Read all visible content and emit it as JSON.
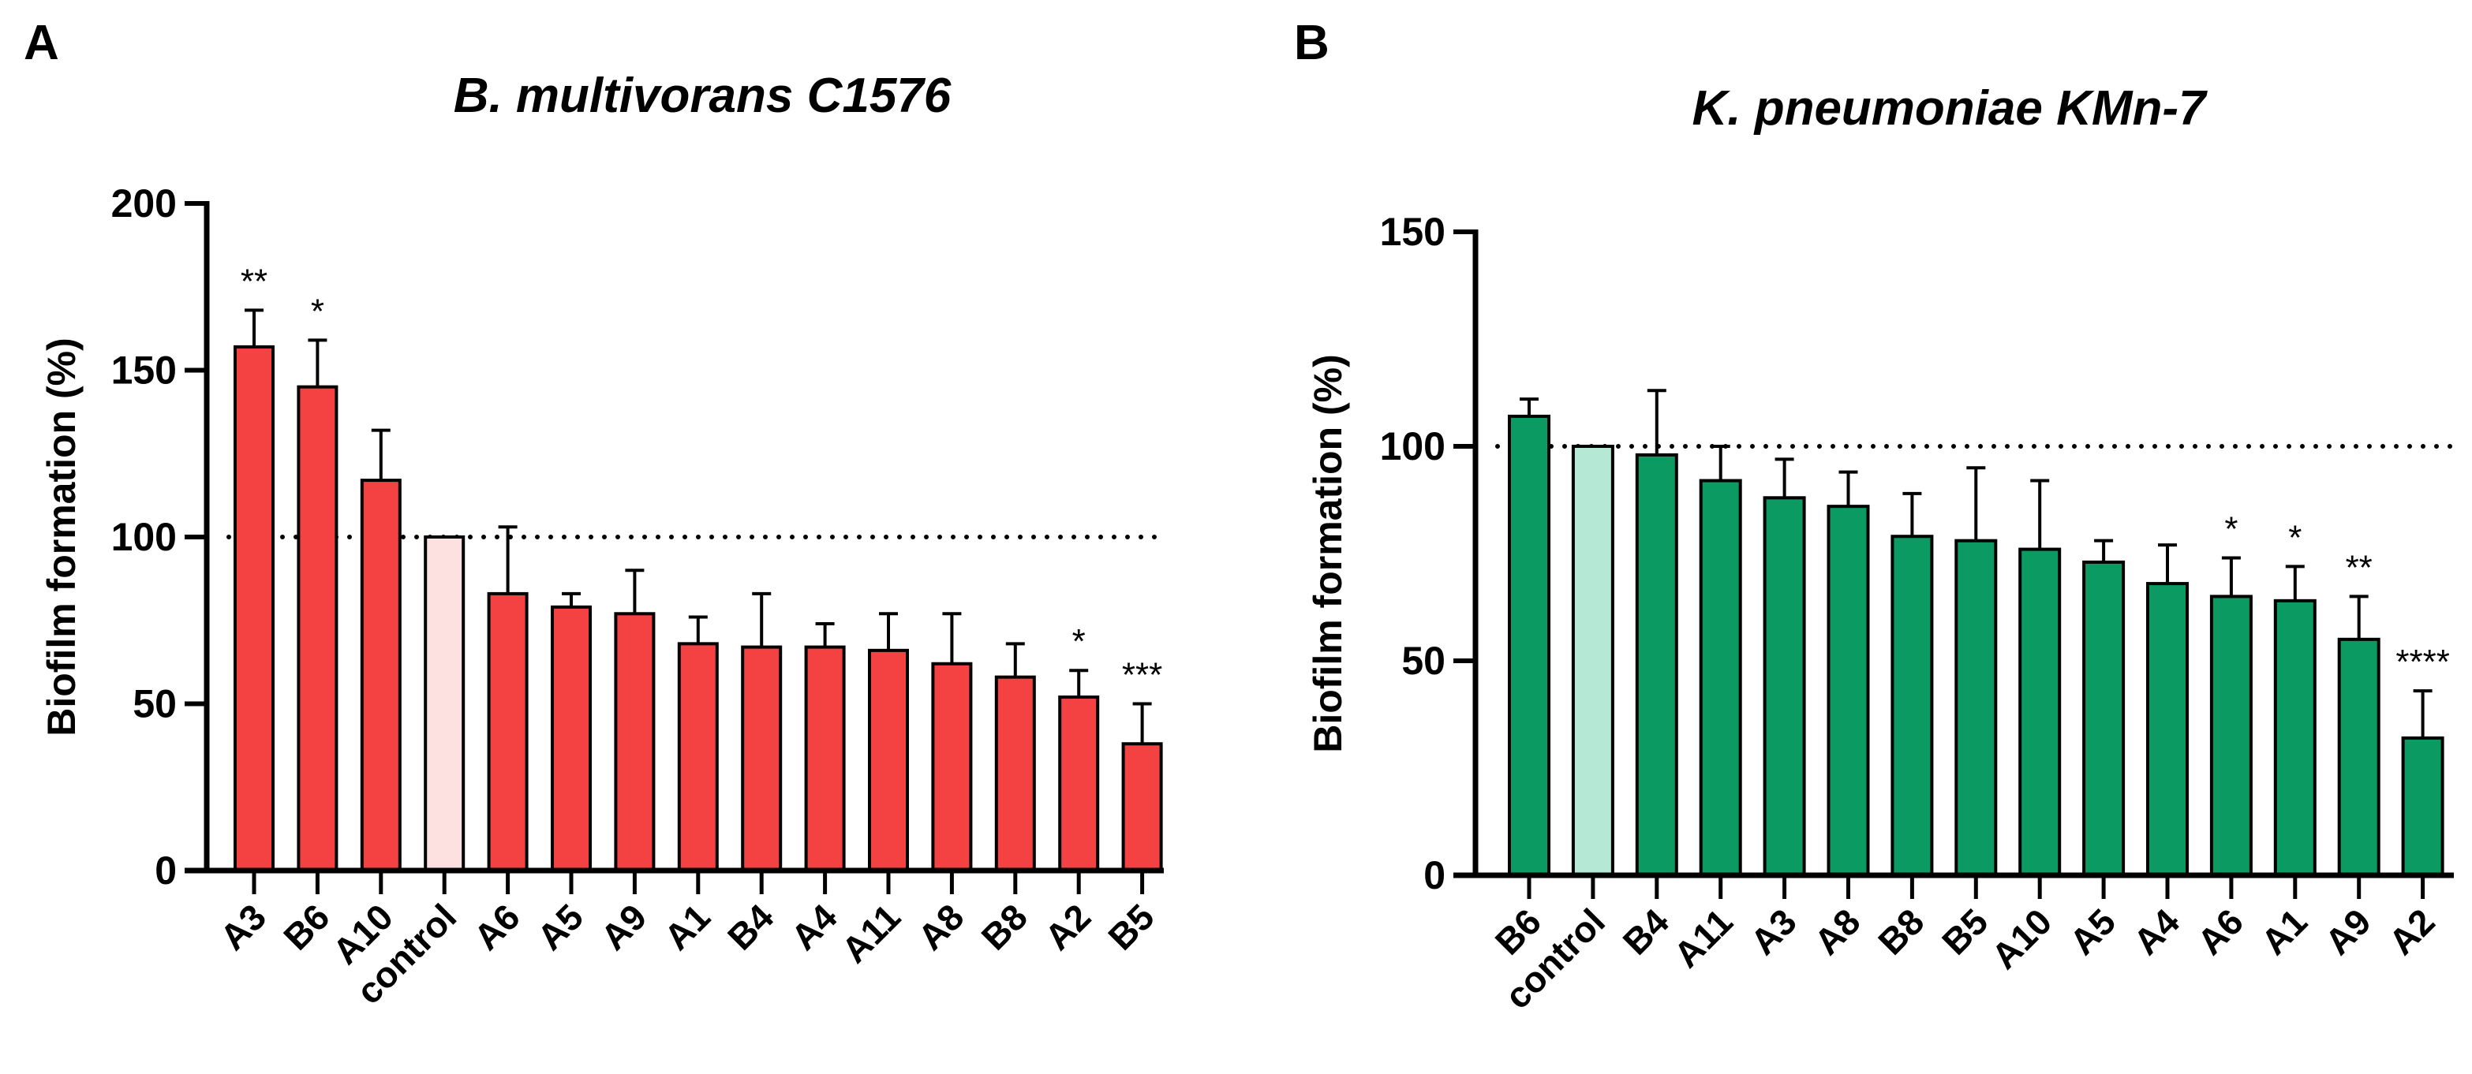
{
  "chart_data": [
    {
      "type": "bar",
      "panel_label": "A",
      "title": "B. multivorans C1576",
      "xlabel": "",
      "ylabel": "Biofilm formation (%)",
      "ylim": [
        0,
        200
      ],
      "yticks": [
        "0",
        "50",
        "100",
        "150",
        "200"
      ],
      "reference_line": 100,
      "bar_color": "#f44242",
      "control_color": "#fde0e0",
      "categories": [
        "A3",
        "B6",
        "A10",
        "control",
        "A6",
        "A5",
        "A9",
        "A1",
        "B4",
        "A4",
        "A11",
        "A8",
        "B8",
        "A2",
        "B5"
      ],
      "values": [
        157,
        145,
        117,
        100,
        83,
        79,
        77,
        68,
        67,
        67,
        66,
        62,
        58,
        52,
        38
      ],
      "errors": [
        11,
        14,
        15,
        0,
        20,
        4,
        13,
        8,
        16,
        7,
        11,
        15,
        10,
        8,
        12
      ],
      "significance": [
        "**",
        "*",
        "",
        "",
        "",
        "",
        "",
        "",
        "",
        "",
        "",
        "",
        "",
        "*",
        "***"
      ]
    },
    {
      "type": "bar",
      "panel_label": "B",
      "title": "K. pneumoniae KMn-7",
      "xlabel": "",
      "ylabel": "Biofilm formation (%)",
      "ylim": [
        0,
        150
      ],
      "yticks": [
        "0",
        "50",
        "100",
        "150"
      ],
      "reference_line": 100,
      "bar_color": "#0b9a62",
      "control_color": "#b5e8d5",
      "categories": [
        "B6",
        "control",
        "B4",
        "A11",
        "A3",
        "A8",
        "B8",
        "B5",
        "A10",
        "A5",
        "A4",
        "A6",
        "A1",
        "A9",
        "A2"
      ],
      "values": [
        107,
        100,
        98,
        92,
        88,
        86,
        79,
        78,
        76,
        73,
        68,
        65,
        64,
        55,
        32
      ],
      "errors": [
        4,
        0,
        15,
        8,
        9,
        8,
        10,
        17,
        16,
        5,
        9,
        9,
        8,
        10,
        11
      ],
      "significance": [
        "",
        "",
        "",
        "",
        "",
        "",
        "",
        "",
        "",
        "",
        "",
        "*",
        "*",
        "**",
        "****"
      ]
    }
  ]
}
